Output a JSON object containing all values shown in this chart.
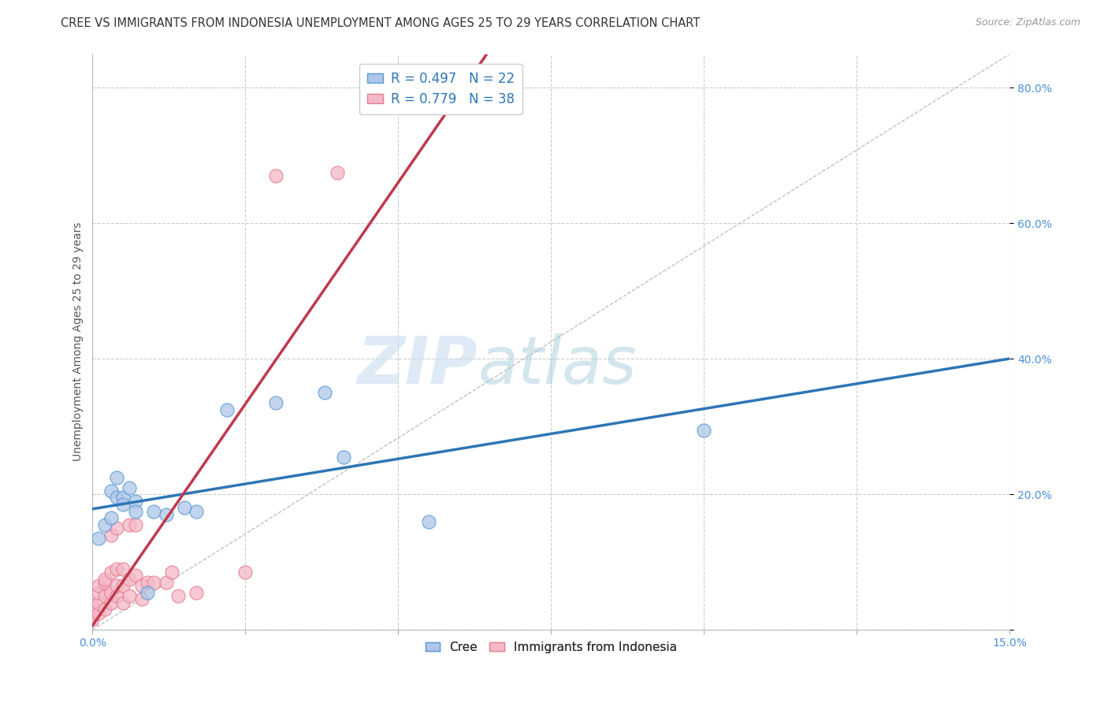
{
  "title": "CREE VS IMMIGRANTS FROM INDONESIA UNEMPLOYMENT AMONG AGES 25 TO 29 YEARS CORRELATION CHART",
  "source": "Source: ZipAtlas.com",
  "ylabel": "Unemployment Among Ages 25 to 29 years",
  "xlim": [
    0.0,
    0.15
  ],
  "ylim": [
    0.0,
    0.85
  ],
  "xticks": [
    0.0,
    0.025,
    0.05,
    0.075,
    0.1,
    0.125,
    0.15
  ],
  "xtick_labels": [
    "0.0%",
    "",
    "",
    "",
    "",
    "",
    "15.0%"
  ],
  "yticks": [
    0.0,
    0.2,
    0.4,
    0.6,
    0.8
  ],
  "ytick_labels": [
    "",
    "20.0%",
    "40.0%",
    "60.0%",
    "80.0%"
  ],
  "watermark_zip": "ZIP",
  "watermark_atlas": "atlas",
  "cree_color": "#aec6e8",
  "cree_edge_color": "#5b9bd5",
  "cree_line_color": "#2e75b6",
  "indonesia_color": "#f4b8c8",
  "indonesia_edge_color": "#e48090",
  "indonesia_line_color": "#c0394b",
  "cree_R": "0.497",
  "cree_N": "22",
  "indonesia_R": "0.779",
  "indonesia_N": "38",
  "cree_points": [
    [
      0.001,
      0.135
    ],
    [
      0.002,
      0.155
    ],
    [
      0.003,
      0.165
    ],
    [
      0.003,
      0.205
    ],
    [
      0.004,
      0.195
    ],
    [
      0.004,
      0.225
    ],
    [
      0.005,
      0.195
    ],
    [
      0.005,
      0.185
    ],
    [
      0.006,
      0.21
    ],
    [
      0.007,
      0.19
    ],
    [
      0.007,
      0.175
    ],
    [
      0.009,
      0.055
    ],
    [
      0.01,
      0.175
    ],
    [
      0.012,
      0.17
    ],
    [
      0.015,
      0.18
    ],
    [
      0.017,
      0.175
    ],
    [
      0.022,
      0.325
    ],
    [
      0.03,
      0.335
    ],
    [
      0.038,
      0.35
    ],
    [
      0.041,
      0.255
    ],
    [
      0.055,
      0.16
    ],
    [
      0.1,
      0.295
    ]
  ],
  "indonesia_points": [
    [
      0.0,
      0.015
    ],
    [
      0.0,
      0.025
    ],
    [
      0.0,
      0.035
    ],
    [
      0.001,
      0.025
    ],
    [
      0.001,
      0.04
    ],
    [
      0.001,
      0.055
    ],
    [
      0.001,
      0.065
    ],
    [
      0.002,
      0.03
    ],
    [
      0.002,
      0.05
    ],
    [
      0.002,
      0.07
    ],
    [
      0.002,
      0.075
    ],
    [
      0.003,
      0.04
    ],
    [
      0.003,
      0.055
    ],
    [
      0.003,
      0.085
    ],
    [
      0.003,
      0.14
    ],
    [
      0.004,
      0.05
    ],
    [
      0.004,
      0.065
    ],
    [
      0.004,
      0.09
    ],
    [
      0.004,
      0.15
    ],
    [
      0.005,
      0.04
    ],
    [
      0.005,
      0.065
    ],
    [
      0.005,
      0.09
    ],
    [
      0.006,
      0.05
    ],
    [
      0.006,
      0.075
    ],
    [
      0.006,
      0.155
    ],
    [
      0.007,
      0.08
    ],
    [
      0.007,
      0.155
    ],
    [
      0.008,
      0.045
    ],
    [
      0.008,
      0.065
    ],
    [
      0.009,
      0.07
    ],
    [
      0.01,
      0.07
    ],
    [
      0.012,
      0.07
    ],
    [
      0.013,
      0.085
    ],
    [
      0.014,
      0.05
    ],
    [
      0.017,
      0.055
    ],
    [
      0.025,
      0.085
    ],
    [
      0.03,
      0.67
    ],
    [
      0.04,
      0.675
    ]
  ],
  "grid_color": "#cccccc",
  "background_color": "#ffffff",
  "title_fontsize": 10.5,
  "tick_fontsize": 10,
  "tick_color": "#4a90d9",
  "title_color": "#333333",
  "source_color": "#999999",
  "ylabel_color": "#555555"
}
